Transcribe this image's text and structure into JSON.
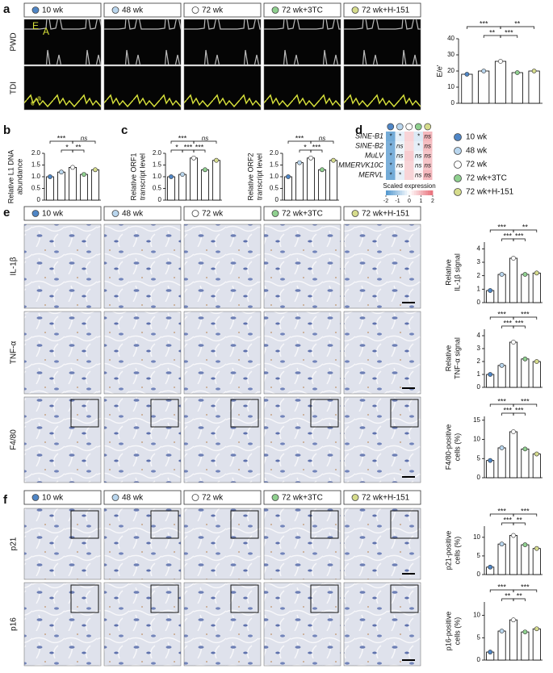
{
  "panels": [
    "a",
    "b",
    "c",
    "d",
    "e",
    "f"
  ],
  "groups": [
    {
      "name": "10 wk",
      "color": "#4f86c6"
    },
    {
      "name": "48 wk",
      "color": "#b9d6ee"
    },
    {
      "name": "72 wk",
      "color": "#ffffff"
    },
    {
      "name": "72 wk+3TC",
      "color": "#8fd08f"
    },
    {
      "name": "72 wk+H-151",
      "color": "#d6dc8c"
    }
  ],
  "image_rows": {
    "a": [
      "PWD",
      "TDI"
    ],
    "e": [
      "IL-1β",
      "TNF-α",
      "F4/80"
    ],
    "f": [
      "p21",
      "p16"
    ]
  },
  "echo_labels": [
    "E",
    "A",
    "e'",
    "a"
  ],
  "chart_data": [
    {
      "type": "bar",
      "ylabel": [
        "E/e'"
      ],
      "values": [
        18,
        20,
        26,
        19,
        20
      ],
      "ylim": [
        0,
        40
      ],
      "yticks": [
        0,
        10,
        20,
        30,
        40
      ],
      "annotations": [
        "***",
        "**",
        "**",
        "***"
      ]
    },
    {
      "type": "bar",
      "ylabel": [
        "Relative L1 DNA",
        "abundance"
      ],
      "values": [
        1.0,
        1.2,
        1.4,
        1.1,
        1.3
      ],
      "ylim": [
        0,
        2
      ],
      "yticks": [
        0,
        0.5,
        {
          "value": 1,
          "label": "1.0"
        },
        1.5,
        {
          "value": 2,
          "label": "2.0"
        }
      ],
      "annotations": [
        "***",
        "ns",
        "*",
        "**"
      ]
    },
    {
      "type": "bar",
      "ylabel": [
        "Relative ORF1",
        "transcript level"
      ],
      "values": [
        1.0,
        1.1,
        1.8,
        1.3,
        1.7
      ],
      "ylim": [
        0,
        2
      ],
      "yticks": [
        0,
        0.5,
        {
          "value": 1,
          "label": "1.0"
        },
        1.5,
        {
          "value": 2,
          "label": "2.0"
        }
      ],
      "annotations": [
        "***",
        "ns",
        "***",
        "***",
        "*"
      ]
    },
    {
      "type": "bar",
      "ylabel": [
        "Relative ORF2",
        "transcript level"
      ],
      "values": [
        1.0,
        1.6,
        1.8,
        1.3,
        1.7
      ],
      "ylim": [
        0,
        2
      ],
      "yticks": [
        0,
        0.5,
        {
          "value": 1,
          "label": "1.0"
        },
        1.5,
        {
          "value": 2,
          "label": "2.0"
        }
      ],
      "annotations": [
        "***",
        "ns",
        "*",
        "***"
      ]
    },
    {
      "type": "heatmap",
      "rows": [
        "SINE-B1",
        "SINE-B2",
        "MuLV",
        "MMERVK10C",
        "MERVL"
      ],
      "values": [
        [
          -1.6,
          -0.3,
          0.6,
          -0.4,
          1.0
        ],
        [
          -1.5,
          -0.2,
          0.5,
          -0.3,
          0.9
        ],
        [
          -1.5,
          -0.2,
          0.7,
          -0.2,
          0.8
        ],
        [
          -1.5,
          0.0,
          0.6,
          -0.1,
          0.8
        ],
        [
          -1.6,
          -0.3,
          0.6,
          0.2,
          1.0
        ]
      ],
      "cell_labels": [
        [
          "*",
          "*",
          null,
          "*",
          "ns"
        ],
        [
          "*",
          "ns",
          null,
          "*",
          "ns"
        ],
        [
          "*",
          "ns",
          null,
          "ns",
          "ns"
        ],
        [
          "*",
          "ns",
          null,
          "ns",
          "ns"
        ],
        [
          "*",
          "*",
          null,
          "ns",
          "ns"
        ]
      ],
      "colorbar_label": "Scaled expression",
      "clim": [
        -2,
        2
      ],
      "colorbar_ticks": [
        -2,
        -1,
        0,
        1,
        2
      ]
    },
    {
      "type": "bar",
      "ylabel": [
        "Relative",
        "IL-1β signal"
      ],
      "values": [
        0.9,
        2.1,
        3.3,
        2.1,
        2.2
      ],
      "ylim": [
        0,
        4.5
      ],
      "yticks": [
        0,
        1,
        2,
        3,
        4
      ],
      "annotations": [
        "***",
        "**",
        "***",
        "***"
      ]
    },
    {
      "type": "bar",
      "ylabel": [
        "Relative",
        "TNF-α signal"
      ],
      "values": [
        1.0,
        1.7,
        3.5,
        2.2,
        2.0
      ],
      "ylim": [
        0,
        4.5
      ],
      "yticks": [
        0,
        1,
        2,
        3,
        4
      ],
      "annotations": [
        "***",
        "***",
        "***",
        "***"
      ]
    },
    {
      "type": "bar",
      "ylabel": [
        "F4/80-positive",
        "cells (%)"
      ],
      "values": [
        4.5,
        7.8,
        12,
        7.5,
        6.2
      ],
      "ylim": [
        0,
        16
      ],
      "yticks": [
        0,
        5,
        10,
        15
      ],
      "annotations": [
        "***",
        "***",
        "***",
        "***"
      ]
    },
    {
      "type": "bar",
      "ylabel": [
        "p21-positive",
        "cells (%)"
      ],
      "values": [
        2,
        8.2,
        10.5,
        8,
        7
      ],
      "ylim": [
        0,
        13
      ],
      "yticks": [
        0,
        5,
        10
      ],
      "annotations": [
        "***",
        "***",
        "***",
        "**"
      ]
    },
    {
      "type": "bar",
      "ylabel": [
        "p16-positive",
        "cells (%)"
      ],
      "values": [
        1.8,
        6.5,
        9,
        6.3,
        7
      ],
      "ylim": [
        0,
        13
      ],
      "yticks": [
        0,
        5,
        10
      ],
      "annotations": [
        "***",
        "***",
        "**",
        "**"
      ]
    }
  ]
}
